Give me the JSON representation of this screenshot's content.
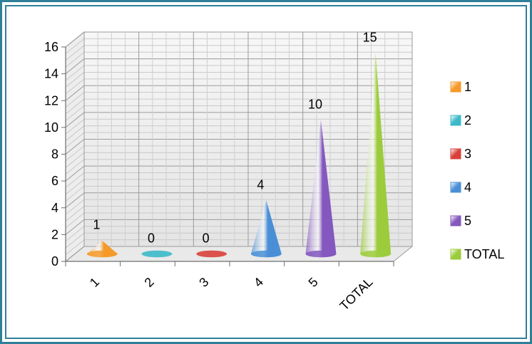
{
  "chart_data": {
    "type": "bar",
    "bar_shape": "cone-3d",
    "categories": [
      "1",
      "2",
      "3",
      "4",
      "5",
      "TOTAL"
    ],
    "values": [
      1,
      0,
      0,
      4,
      10,
      15
    ],
    "data_labels": [
      "1",
      "0",
      "0",
      "4",
      "10",
      "15"
    ],
    "title": "",
    "xlabel": "",
    "ylabel": "",
    "ylim": [
      0,
      16
    ],
    "yticks": [
      "0",
      "2",
      "4",
      "6",
      "8",
      "10",
      "12",
      "14",
      "16"
    ],
    "grid": true,
    "legend_position": "right",
    "legend": [
      "1",
      "2",
      "3",
      "4",
      "5",
      "TOTAL"
    ],
    "colors": [
      "#f59a2a",
      "#3cb9c9",
      "#d9403a",
      "#4a8fd6",
      "#8458be",
      "#9ccc3c"
    ]
  }
}
